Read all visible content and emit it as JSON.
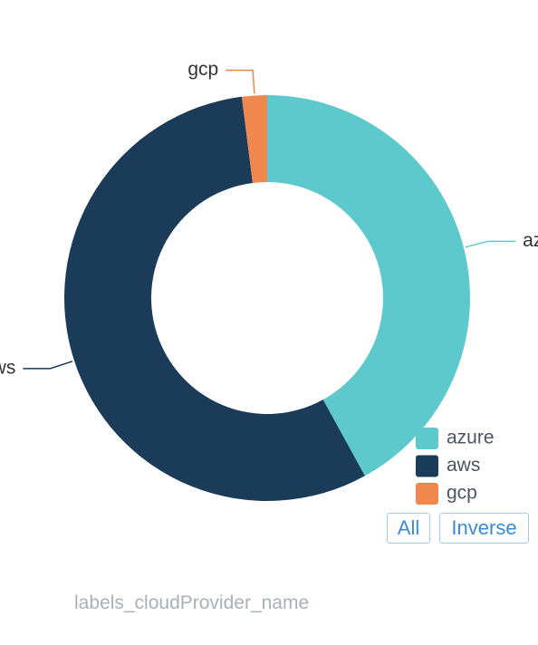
{
  "chart_data": {
    "type": "pie",
    "categories": [
      "azure",
      "aws",
      "gcp"
    ],
    "values": [
      42,
      56,
      2
    ],
    "colors": [
      "#5ec9cc",
      "#1b3c59",
      "#f0874f"
    ],
    "donut": true,
    "legend": "bottom-right",
    "x_label": "labels_cloudProvider_name"
  },
  "controls": [
    "All",
    "Inverse"
  ]
}
